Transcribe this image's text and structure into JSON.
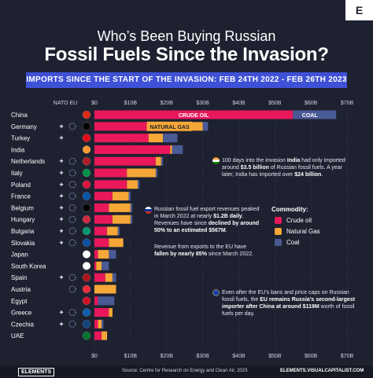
{
  "brand": "E",
  "title_line1": "Who’s Been Buying Russian",
  "title_line2": "Fossil Fuels Since the Invasion?",
  "subtitle": "IMPORTS SINCE THE START OF THE INVASION:  FEB 24TH 2022 - FEB 26TH 2023",
  "colors": {
    "crude": "#e8185a",
    "gas": "#f5a737",
    "coal": "#4a5a95",
    "background": "#1e2130"
  },
  "chart_data": {
    "type": "bar",
    "orientation": "horizontal",
    "stacked": true,
    "unit": "USD billions",
    "header_label": "NATO EU",
    "xlim": [
      0,
      70
    ],
    "x_ticks": [
      "$0",
      "$10B",
      "$20B",
      "$30B",
      "$40B",
      "$50B",
      "$60B",
      "$70B"
    ],
    "categories": [
      "China",
      "Germany",
      "Turkey",
      "India",
      "Netherlands",
      "Italy",
      "Poland",
      "France",
      "Belgium",
      "Hungary",
      "Bulgaria",
      "Slovakia",
      "Japan",
      "South Korea",
      "Spain",
      "Austria",
      "Egypt",
      "Greece",
      "Czechia",
      "UAE"
    ],
    "nato_member": [
      false,
      true,
      true,
      false,
      true,
      true,
      true,
      true,
      true,
      true,
      true,
      true,
      false,
      false,
      true,
      false,
      false,
      true,
      true,
      false
    ],
    "eu_member": [
      false,
      true,
      false,
      false,
      true,
      true,
      true,
      true,
      true,
      true,
      true,
      true,
      false,
      false,
      true,
      true,
      false,
      true,
      true,
      false
    ],
    "series": [
      {
        "name": "Crude oil",
        "color": "#e8185a",
        "values": [
          55,
          14.5,
          15,
          21,
          17,
          9,
          9,
          5,
          4,
          5,
          3.5,
          4,
          1,
          0.5,
          3,
          0,
          1,
          4,
          1,
          2
        ]
      },
      {
        "name": "Natural Gas",
        "color": "#f5a737",
        "values": [
          0,
          15.5,
          4,
          0.5,
          1.5,
          8,
          3,
          4.5,
          6,
          5,
          3,
          4,
          3,
          1.5,
          2,
          6,
          0,
          1,
          1,
          1.5
        ]
      },
      {
        "name": "Coal",
        "color": "#4a5a95",
        "values": [
          12,
          1.5,
          4,
          3,
          0.5,
          0.5,
          0.5,
          0.5,
          0.5,
          0.5,
          0.5,
          0,
          2,
          2,
          1,
          0,
          4.5,
          0,
          0.5,
          0
        ]
      }
    ],
    "data_labels": {
      "crude": "CRUDE OIL",
      "coal": "COAL",
      "gas": "NATURAL GAS"
    },
    "legend_title": "Commodity:",
    "legend_position": "right"
  },
  "annotations": {
    "india": [
      "100 days into the invasion ",
      "India",
      " had only imported around ",
      "$3.5 billion",
      " of Russian fossil fuels. A year later, India has imported over ",
      "$24 billion",
      "."
    ],
    "russia1": [
      "Russian fossil fuel export revenues peaked in March 2022 at nearly ",
      "$1.2B daily",
      ". Revenues have since ",
      "declined by around 50% to an estimated $567M",
      "."
    ],
    "russia2": [
      "Revenue from exports to the EU have ",
      "fallen by nearly 85%",
      " since March 2022."
    ],
    "eu": [
      "Even after the EU’s bans and price caps on Russian fossil fuels, the ",
      "EU remains Russia’s second-largest importer after China at around $119M",
      " worth of fossil fuels per day."
    ]
  },
  "footer": {
    "logo": "ELEMENTS",
    "source": "Source: Centre for Research on Energy and Clean Air, 2023",
    "url": "ELEMENTS.VISUALCAPITALIST.COM"
  }
}
